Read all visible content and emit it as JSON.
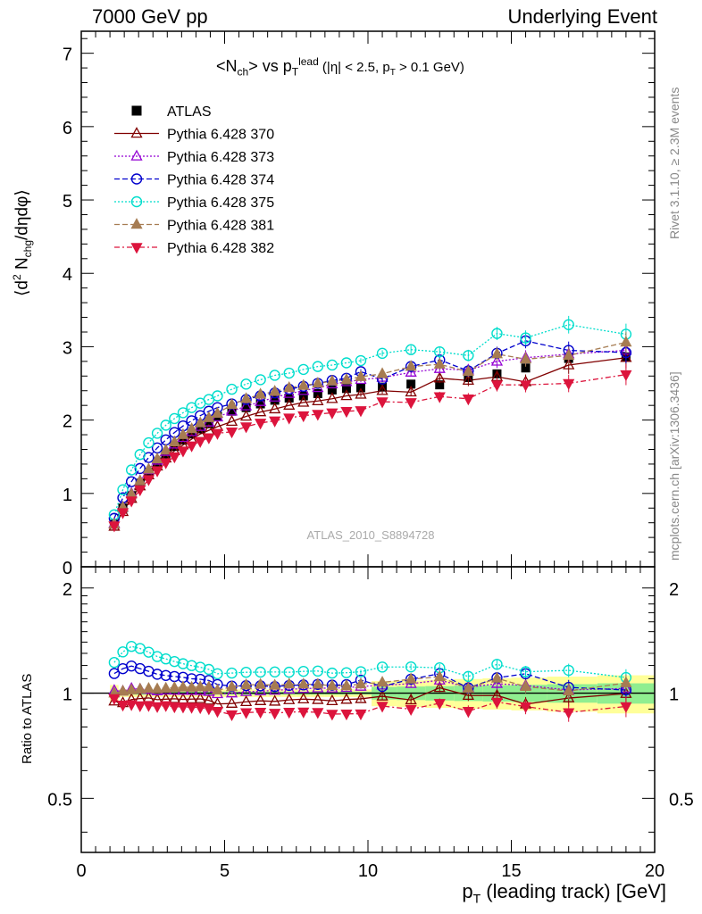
{
  "header": {
    "left": "7000 GeV pp",
    "right": "Underlying Event"
  },
  "side_notes": {
    "rivet": "Rivet 3.1.10, ≥ 2.3M events",
    "mcplots": "mcplots.cern.ch [arXiv:1306.3436]"
  },
  "watermark": "ATLAS_2010_S8894728",
  "chart_data": [
    {
      "type": "scatter",
      "title": "<N_ch> vs p_T^lead (|η| < 2.5, p_T > 0.1 GeV)",
      "ylabel": "⟨d² N_chg/dηdφ⟩",
      "xlim": [
        0,
        20
      ],
      "ylim": [
        0,
        7.3
      ],
      "x_ticks": [
        0,
        5,
        10,
        15,
        20
      ],
      "y_ticks": [
        0,
        1,
        2,
        3,
        4,
        5,
        6,
        7
      ],
      "legend_position": "top-left",
      "x": [
        1.15,
        1.45,
        1.75,
        2.05,
        2.35,
        2.65,
        2.95,
        3.25,
        3.55,
        3.85,
        4.15,
        4.45,
        4.75,
        5.25,
        5.75,
        6.25,
        6.75,
        7.25,
        7.75,
        8.25,
        8.75,
        9.25,
        9.75,
        10.5,
        11.5,
        12.5,
        13.5,
        14.5,
        15.5,
        17.0,
        19.0
      ],
      "series": [
        {
          "name": "ATLAS",
          "color": "#000000",
          "values": [
            0.58,
            0.8,
            0.97,
            1.14,
            1.29,
            1.43,
            1.54,
            1.64,
            1.73,
            1.81,
            1.88,
            1.95,
            2.05,
            2.12,
            2.17,
            2.22,
            2.27,
            2.3,
            2.33,
            2.36,
            2.41,
            2.43,
            2.44,
            2.45,
            2.49,
            2.48,
            2.58,
            2.63,
            2.71,
            2.84,
            2.86
          ]
        },
        {
          "name": "Pythia 6.428 370",
          "color": "#800000",
          "values": [
            0.55,
            0.75,
            0.93,
            1.1,
            1.25,
            1.37,
            1.48,
            1.58,
            1.66,
            1.74,
            1.81,
            1.86,
            1.91,
            1.98,
            2.05,
            2.11,
            2.15,
            2.2,
            2.24,
            2.26,
            2.29,
            2.33,
            2.35,
            2.4,
            2.38,
            2.57,
            2.54,
            2.59,
            2.52,
            2.75,
            2.85
          ]
        },
        {
          "name": "Pythia 6.428 373",
          "color": "#9400d3",
          "values": [
            0.59,
            0.81,
            1.0,
            1.17,
            1.32,
            1.45,
            1.57,
            1.67,
            1.76,
            1.84,
            1.91,
            1.97,
            2.04,
            2.12,
            2.19,
            2.25,
            2.31,
            2.36,
            2.4,
            2.44,
            2.49,
            2.52,
            2.55,
            2.58,
            2.65,
            2.7,
            2.68,
            2.8,
            2.85,
            2.9,
            2.95
          ]
        },
        {
          "name": "Pythia 6.428 374",
          "color": "#0000cd",
          "values": [
            0.66,
            0.94,
            1.16,
            1.34,
            1.49,
            1.62,
            1.73,
            1.83,
            1.92,
            1.99,
            2.06,
            2.12,
            2.17,
            2.22,
            2.28,
            2.33,
            2.37,
            2.42,
            2.46,
            2.5,
            2.54,
            2.57,
            2.66,
            2.56,
            2.73,
            2.82,
            2.67,
            2.91,
            3.08,
            2.95,
            2.92
          ]
        },
        {
          "name": "Pythia 6.428 375",
          "color": "#00ddcc",
          "values": [
            0.71,
            1.05,
            1.32,
            1.53,
            1.69,
            1.82,
            1.93,
            2.02,
            2.1,
            2.17,
            2.23,
            2.28,
            2.33,
            2.42,
            2.49,
            2.55,
            2.61,
            2.64,
            2.69,
            2.73,
            2.75,
            2.78,
            2.81,
            2.91,
            2.96,
            2.93,
            2.88,
            3.18,
            3.12,
            3.3,
            3.17
          ]
        },
        {
          "name": "Pythia 6.428 381",
          "color": "#a67c52",
          "values": [
            0.58,
            0.81,
            0.99,
            1.17,
            1.33,
            1.47,
            1.59,
            1.7,
            1.8,
            1.88,
            1.96,
            2.03,
            2.09,
            2.21,
            2.29,
            2.35,
            2.39,
            2.44,
            2.47,
            2.5,
            2.53,
            2.55,
            2.59,
            2.63,
            2.73,
            2.76,
            2.66,
            2.9,
            2.83,
            2.88,
            3.06
          ]
        },
        {
          "name": "Pythia 6.428 382",
          "color": "#dc143c",
          "values": [
            0.56,
            0.74,
            0.9,
            1.05,
            1.19,
            1.31,
            1.42,
            1.5,
            1.58,
            1.65,
            1.71,
            1.76,
            1.82,
            1.84,
            1.91,
            1.96,
            1.99,
            2.03,
            2.06,
            2.08,
            2.1,
            2.12,
            2.13,
            2.25,
            2.24,
            2.32,
            2.29,
            2.48,
            2.48,
            2.5,
            2.62
          ]
        }
      ]
    },
    {
      "type": "scatter",
      "xlabel": "p_T (leading track) [GeV]",
      "ylabel": "Ratio to ATLAS",
      "xlim": [
        0,
        20
      ],
      "ylim": [
        0.35,
        2.3
      ],
      "x_ticks": [
        0,
        5,
        10,
        15,
        20
      ],
      "y_ticks": [
        0.5,
        1,
        2
      ],
      "log_y": true,
      "band_colors": {
        "inner": "#90ee90",
        "outer": "#ffff99"
      }
    }
  ]
}
